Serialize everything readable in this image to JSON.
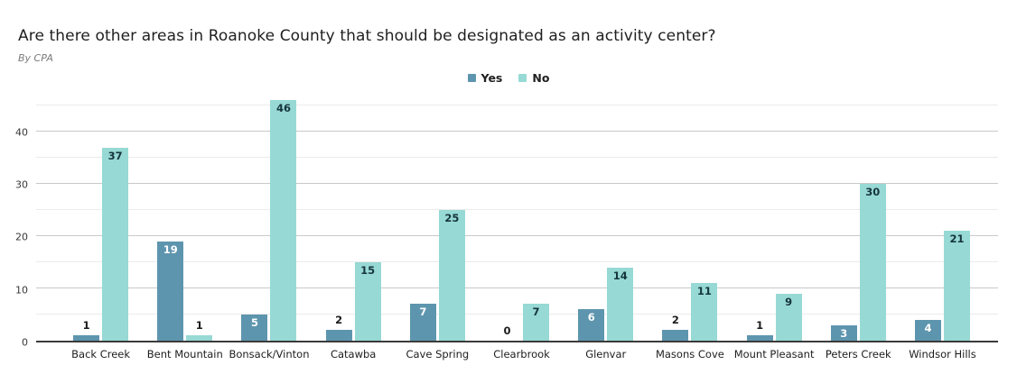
{
  "header": {
    "title": "Are there other areas in Roanoke County that should be designated as an activity center?",
    "subtitle": "By CPA"
  },
  "legend": [
    {
      "label": "Yes",
      "color": "#5e95ae"
    },
    {
      "label": "No",
      "color": "#97d9d4"
    }
  ],
  "chart_data": {
    "type": "bar",
    "title": "Are there other areas in Roanoke County that should be designated as an activity center?",
    "subtitle": "By CPA",
    "xlabel": "",
    "ylabel": "",
    "categories": [
      "Back Creek",
      "Bent Mountain",
      "Bonsack/Vinton",
      "Catawba",
      "Cave Spring",
      "Clearbrook",
      "Glenvar",
      "Masons Cove",
      "Mount Pleasant",
      "Peters Creek",
      "Windsor Hills"
    ],
    "series": [
      {
        "name": "Yes",
        "color": "#5e95ae",
        "label_color": "#ffffff",
        "values": [
          1,
          19,
          5,
          2,
          7,
          0,
          6,
          2,
          1,
          3,
          4
        ]
      },
      {
        "name": "No",
        "color": "#97d9d4",
        "label_color": "#16353c",
        "values": [
          37,
          1,
          46,
          15,
          25,
          7,
          14,
          11,
          9,
          30,
          21
        ]
      }
    ],
    "ylim": [
      0,
      46.6
    ],
    "yticks": [
      0,
      10,
      20,
      30,
      40
    ],
    "gridlines": [
      5,
      10,
      15,
      20,
      25,
      30,
      35,
      40,
      45
    ],
    "grid": true,
    "legend_position": "top-center",
    "label_inside_threshold": 3
  }
}
